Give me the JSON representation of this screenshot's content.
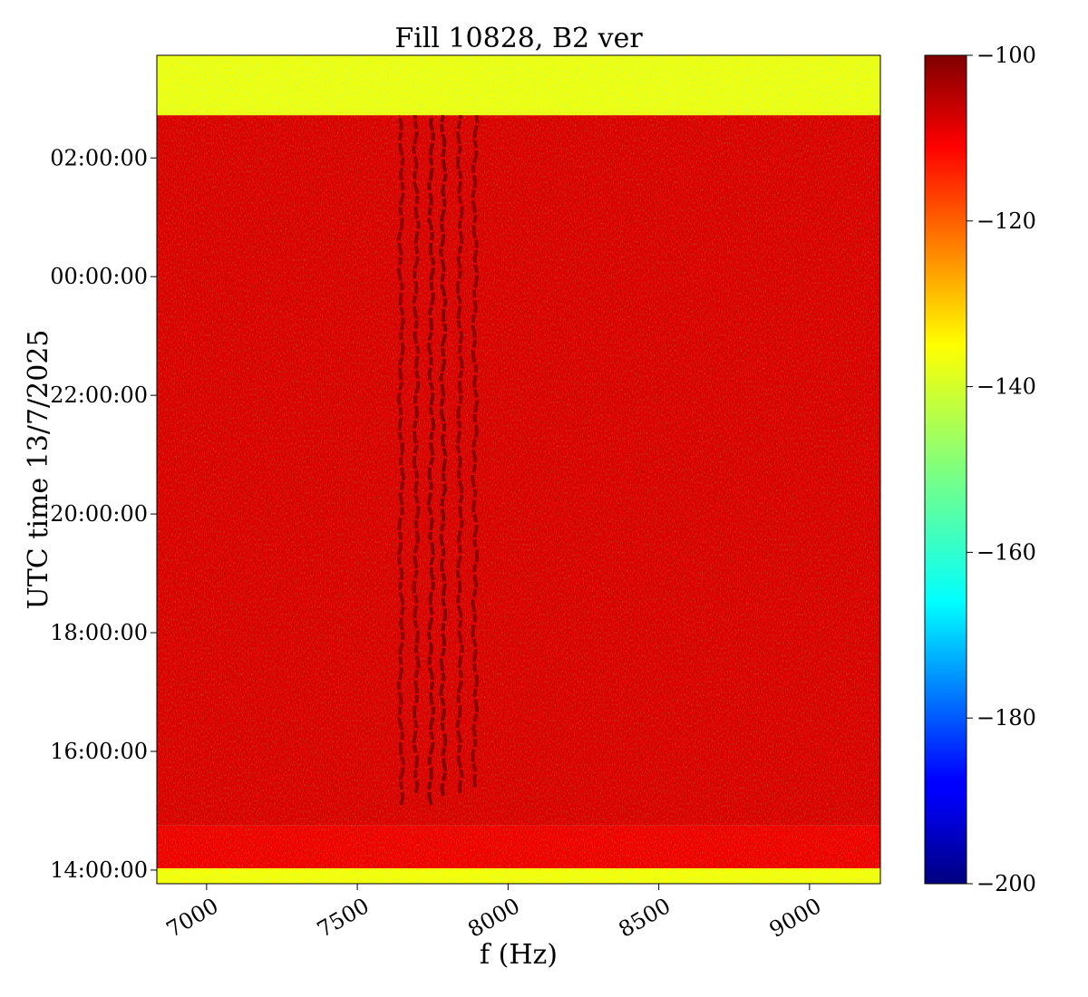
{
  "chart_data": {
    "type": "heatmap",
    "title": "Fill 10828, B2 ver",
    "xlabel": "f (Hz)",
    "ylabel": "UTC time 13/7/2025",
    "xlim": [
      6835,
      9235
    ],
    "ylim_hours": [
      13.77,
      27.73
    ],
    "x_ticks": [
      {
        "value": 7000,
        "label": "7000"
      },
      {
        "value": 7500,
        "label": "7500"
      },
      {
        "value": 8000,
        "label": "8000"
      },
      {
        "value": 8500,
        "label": "8500"
      },
      {
        "value": 9000,
        "label": "9000"
      }
    ],
    "y_ticks": [
      {
        "value": 14,
        "label": "14:00:00"
      },
      {
        "value": 16,
        "label": "16:00:00"
      },
      {
        "value": 18,
        "label": "18:00:00"
      },
      {
        "value": 20,
        "label": "20:00:00"
      },
      {
        "value": 22,
        "label": "22:00:00"
      },
      {
        "value": 24,
        "label": "00:00:00"
      },
      {
        "value": 26,
        "label": "02:00:00"
      }
    ],
    "colorbar": {
      "colormap": "jet",
      "range": [
        -200,
        -100
      ],
      "ticks": [
        {
          "value": -100,
          "label": "−100"
        },
        {
          "value": -120,
          "label": "−120"
        },
        {
          "value": -140,
          "label": "−140"
        },
        {
          "value": -160,
          "label": "−160"
        },
        {
          "value": -180,
          "label": "−180"
        },
        {
          "value": -200,
          "label": "−200"
        }
      ]
    },
    "regions": [
      {
        "t_start": 13.77,
        "t_end": 14.03,
        "level_dB": -136
      },
      {
        "t_start": 14.03,
        "t_end": 14.75,
        "level_dB": -110
      },
      {
        "t_start": 14.75,
        "t_end": 26.72,
        "level_dB": -108
      },
      {
        "t_start": 26.72,
        "t_end": 27.73,
        "level_dB": -137
      }
    ],
    "spectral_lines": [
      {
        "freq": 7645,
        "t_start": 15.1,
        "t_end": 26.72,
        "level_dB": -101
      },
      {
        "freq": 7695,
        "t_start": 15.3,
        "t_end": 26.72,
        "level_dB": -101
      },
      {
        "freq": 7745,
        "t_start": 15.1,
        "t_end": 26.72,
        "level_dB": -100
      },
      {
        "freq": 7785,
        "t_start": 15.25,
        "t_end": 26.72,
        "level_dB": -100
      },
      {
        "freq": 7840,
        "t_start": 15.3,
        "t_end": 26.72,
        "level_dB": -101
      },
      {
        "freq": 7890,
        "t_start": 15.4,
        "t_end": 26.72,
        "level_dB": -101
      }
    ]
  },
  "colors": {
    "jet_stops": [
      "#00007f",
      "#0000ff",
      "#00ffff",
      "#7fff7f",
      "#ffff00",
      "#ff0000",
      "#7f0000"
    ]
  }
}
